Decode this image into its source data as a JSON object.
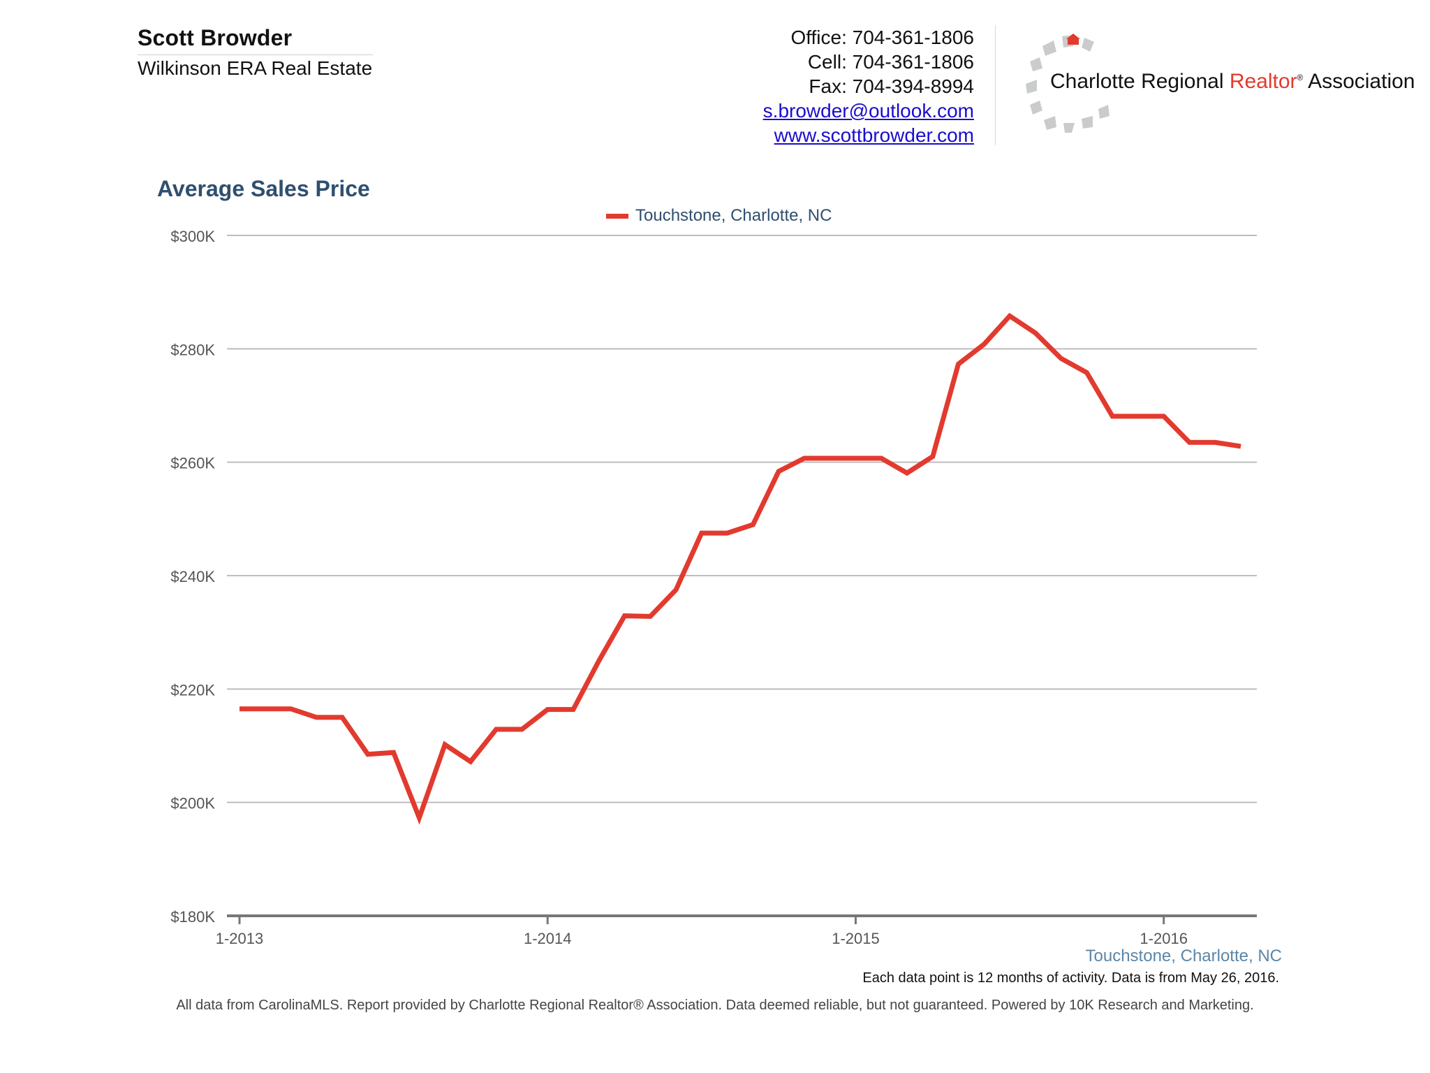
{
  "agent": {
    "name": "Scott Browder",
    "company": "Wilkinson ERA Real Estate"
  },
  "contact": {
    "office": "Office: 704-361-1806",
    "cell": "Cell: 704-361-1806",
    "fax": "Fax: 704-394-8994",
    "email": "s.browder@outlook.com",
    "website": "www.scottbrowder.com"
  },
  "association": {
    "part1": "Charlotte Regional ",
    "part2": "Realtor",
    "reg": "®",
    "part3": " Association"
  },
  "colors": {
    "line": "#e23a2e",
    "title": "#2f4f6f",
    "grid": "#bdbdbd",
    "axis": "#777777"
  },
  "chart_data": {
    "type": "line",
    "title": "Average Sales Price",
    "series": [
      {
        "name": "Touchstone, Charlotte, NC",
        "values": [
          216.5,
          216.5,
          216.5,
          215.0,
          215.0,
          208.5,
          208.8,
          197.3,
          210.2,
          207.2,
          212.9,
          212.9,
          216.4,
          216.4,
          225.0,
          232.9,
          232.8,
          237.5,
          247.5,
          247.5,
          249.0,
          258.4,
          260.7,
          260.7,
          260.7,
          260.7,
          258.1,
          261.0,
          277.3,
          280.8,
          285.8,
          282.8,
          278.3,
          275.8,
          268.1,
          268.1,
          268.1,
          263.5,
          263.5,
          262.8
        ]
      }
    ],
    "x_start": "1-2013",
    "x_ticks": [
      "1-2013",
      "1-2014",
      "1-2015",
      "1-2016"
    ],
    "y_ticks": [
      "$180K",
      "$200K",
      "$220K",
      "$240K",
      "$260K",
      "$280K",
      "$300K"
    ],
    "ylim": [
      180,
      300
    ],
    "ylabel": "",
    "xlabel": "Touchstone, Charlotte, NC",
    "legend": "top-center",
    "grid": true
  },
  "note": "Each data point is 12 months of activity. Data is from May 26, 2016.",
  "footer": "All data from CarolinaMLS. Report provided by Charlotte Regional Realtor® Association. Data deemed reliable, but not guaranteed. Powered by 10K Research and Marketing."
}
